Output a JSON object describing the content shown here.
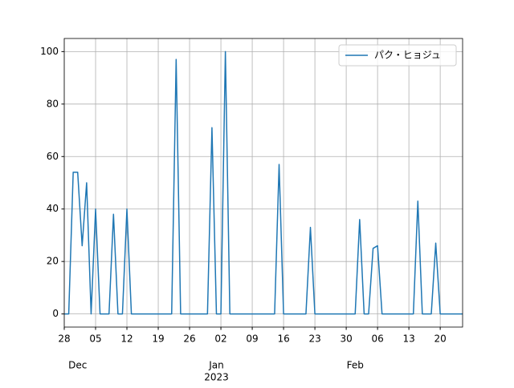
{
  "chart_data": {
    "type": "line",
    "x": [
      0,
      1,
      2,
      3,
      4,
      5,
      6,
      7,
      8,
      9,
      10,
      11,
      12,
      13,
      14,
      15,
      16,
      17,
      18,
      19,
      20,
      21,
      22,
      23,
      24,
      25,
      26,
      27,
      28,
      29,
      30,
      31,
      32,
      33,
      34,
      35,
      36,
      37,
      38,
      39,
      40,
      41,
      42,
      43,
      44,
      45,
      46,
      47,
      48,
      49,
      50,
      51,
      52,
      53,
      54,
      55,
      56,
      57,
      58,
      59,
      60,
      61,
      62,
      63,
      64,
      65,
      66,
      67,
      68,
      69,
      70,
      71,
      72,
      73,
      74,
      75,
      76,
      77,
      78,
      79,
      80,
      81,
      82,
      83,
      84,
      85,
      86,
      87,
      88,
      89
    ],
    "series": [
      {
        "name": "パク・ヒョジュ",
        "color": "#1f77b4",
        "values": [
          0,
          0,
          54,
          54,
          26,
          50,
          0,
          40,
          0,
          0,
          0,
          38,
          0,
          0,
          40,
          0,
          0,
          0,
          0,
          0,
          0,
          0,
          0,
          0,
          0,
          97,
          0,
          0,
          0,
          0,
          0,
          0,
          0,
          71,
          0,
          0,
          100,
          0,
          0,
          0,
          0,
          0,
          0,
          0,
          0,
          0,
          0,
          0,
          57,
          0,
          0,
          0,
          0,
          0,
          0,
          33,
          0,
          0,
          0,
          0,
          0,
          0,
          0,
          0,
          0,
          0,
          36,
          0,
          0,
          25,
          26,
          0,
          0,
          0,
          0,
          0,
          0,
          0,
          0,
          43,
          0,
          0,
          0,
          27,
          0,
          0,
          0,
          0,
          0,
          0
        ]
      }
    ],
    "xlim": [
      0,
      89
    ],
    "xticks": [
      {
        "value": 0,
        "label": "28"
      },
      {
        "value": 7,
        "label": "05"
      },
      {
        "value": 14,
        "label": "12"
      },
      {
        "value": 21,
        "label": "19"
      },
      {
        "value": 28,
        "label": "26"
      },
      {
        "value": 35,
        "label": "02"
      },
      {
        "value": 42,
        "label": "09"
      },
      {
        "value": 49,
        "label": "16"
      },
      {
        "value": 56,
        "label": "23"
      },
      {
        "value": 63,
        "label": "30"
      },
      {
        "value": 70,
        "label": "06"
      },
      {
        "value": 77,
        "label": "13"
      },
      {
        "value": 84,
        "label": "20"
      }
    ],
    "month_labels": [
      {
        "value": 3,
        "label": "Dec"
      },
      {
        "value": 34,
        "label": "Jan"
      },
      {
        "value": 65,
        "label": "Feb"
      }
    ],
    "year_label": {
      "value": 34,
      "label": "2023"
    },
    "ylim": [
      -5,
      105
    ],
    "yticks": [
      0,
      20,
      40,
      60,
      80,
      100
    ],
    "grid": true,
    "legend": "upper right"
  }
}
